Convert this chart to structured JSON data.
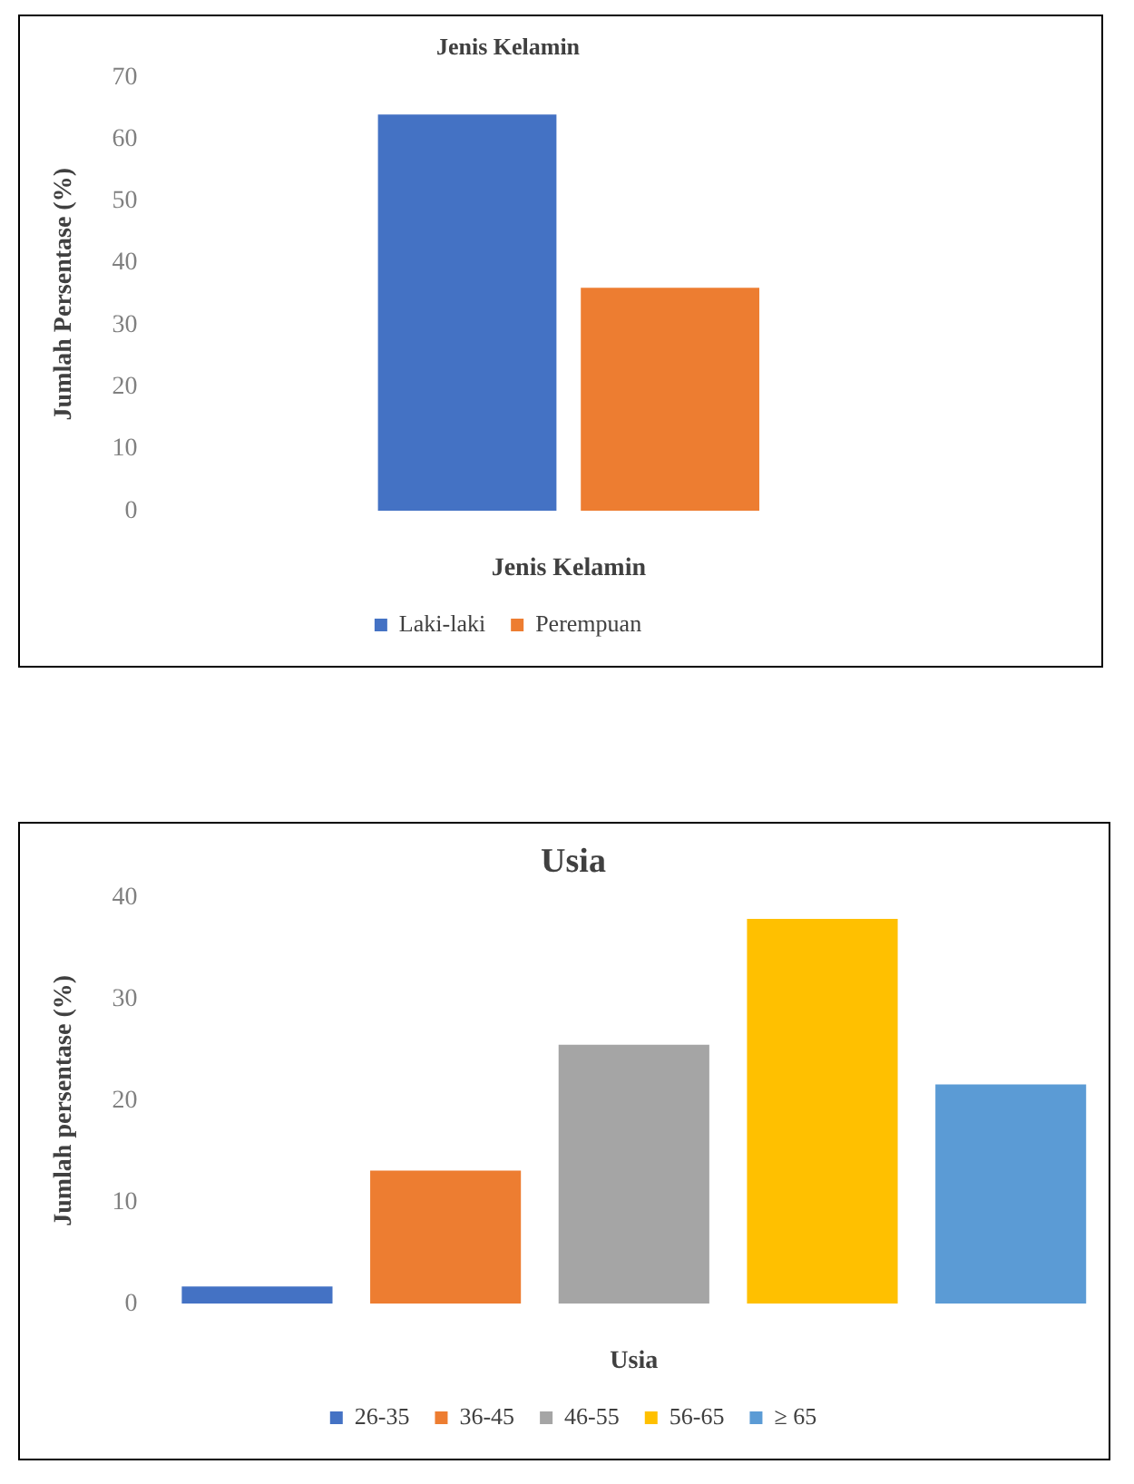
{
  "chart_data": [
    {
      "type": "bar",
      "title": "Jenis Kelamin",
      "xlabel": "Jenis Kelamin",
      "ylabel": "Jumlah Persentase (%)",
      "categories": [
        null
      ],
      "series": [
        {
          "name": "Laki-laki",
          "color": "#4472c4",
          "values": [
            64
          ]
        },
        {
          "name": "Perempuan",
          "color": "#ed7d31",
          "values": [
            36
          ]
        }
      ],
      "ylim": [
        0,
        70
      ],
      "yticks": [
        0,
        10,
        20,
        30,
        40,
        50,
        60,
        70
      ],
      "legend": "bottom"
    },
    {
      "type": "bar",
      "title": "Usia",
      "xlabel": "Usia",
      "ylabel": "Jumlah persentase (%)",
      "categories": [
        null,
        null,
        null,
        null,
        null
      ],
      "stacked": true,
      "series": [
        {
          "name": "26-35",
          "color": "#4472c4",
          "values": [
            1.7,
            null,
            null,
            null,
            null
          ]
        },
        {
          "name": "36-45",
          "color": "#ed7d31",
          "values": [
            null,
            13.1,
            null,
            null,
            null
          ]
        },
        {
          "name": "46-55",
          "color": "#a5a5a5",
          "values": [
            null,
            null,
            25.5,
            null,
            null
          ]
        },
        {
          "name": "56-65",
          "color": "#ffc000",
          "values": [
            null,
            null,
            null,
            37.9,
            null
          ]
        },
        {
          "name": "≥ 65",
          "color": "#5b9bd5",
          "values": [
            null,
            null,
            null,
            null,
            21.6
          ]
        }
      ],
      "ylim": [
        0,
        40
      ],
      "yticks": [
        0,
        10,
        20,
        30,
        40
      ],
      "legend": "bottom"
    }
  ]
}
